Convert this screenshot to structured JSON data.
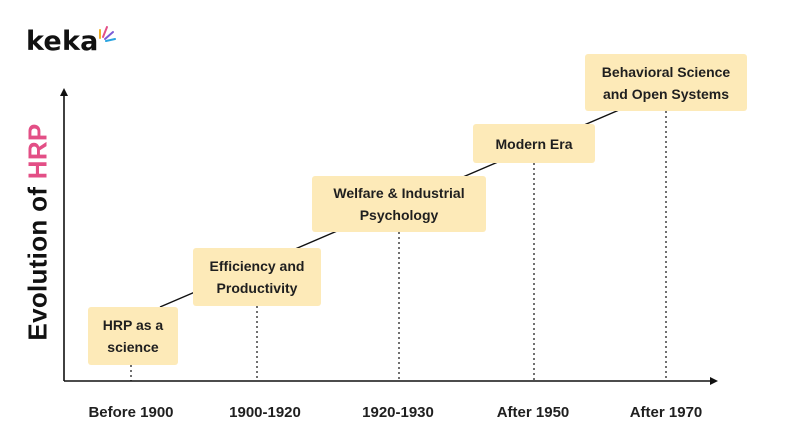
{
  "logo": {
    "text": "keka"
  },
  "title": {
    "prefix": "Evolution of ",
    "highlight": "HRP"
  },
  "colors": {
    "box_fill": "#fdeab8",
    "highlight": "#e34f86",
    "text": "#111111"
  },
  "stages": [
    {
      "label": "HRP as a\nscience",
      "period": "Before 1900"
    },
    {
      "label": "Efficiency and\nProductivity",
      "period": "1900-1920"
    },
    {
      "label": "Welfare & Industrial\nPsychology",
      "period": "1920-1930"
    },
    {
      "label": "Modern Era",
      "period": "After 1950"
    },
    {
      "label": "Behavioral Science\nand Open Systems",
      "period": "After 1970"
    }
  ]
}
